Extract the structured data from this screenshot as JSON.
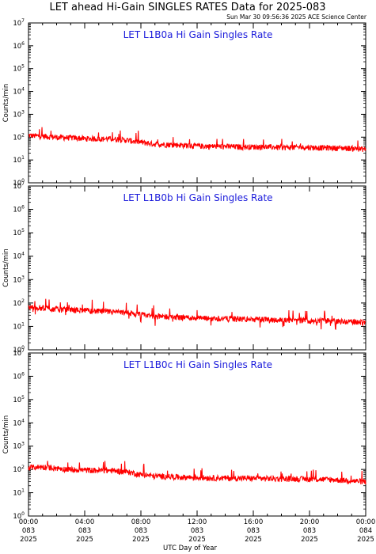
{
  "title": "LET ahead Hi-Gain SINGLES RATES Data for 2025-083",
  "timestamp": "Sun Mar 30 09:56:36 2025 ACE Science Center",
  "colors": {
    "series": "#ff0000",
    "panel_title": "#1a1adb",
    "axes": "#000000"
  },
  "chart_data": [
    {
      "type": "line",
      "title": "LET L1B0a Hi Gain Singles Rate",
      "ylabel": "Counts/min",
      "yscale": "log",
      "ylim": [
        1,
        10000000
      ],
      "xlim": [
        0,
        24
      ],
      "x": [
        0,
        1,
        2,
        3,
        4,
        5,
        6,
        7,
        8,
        9,
        10,
        11,
        12,
        13,
        14,
        15,
        16,
        17,
        18,
        19,
        20,
        21,
        22,
        23,
        24
      ],
      "series": [
        {
          "values": [
            120,
            110,
            100,
            95,
            88,
            85,
            85,
            75,
            60,
            50,
            48,
            45,
            42,
            40,
            40,
            38,
            38,
            38,
            36,
            36,
            36,
            35,
            34,
            33,
            30
          ]
        }
      ]
    },
    {
      "type": "line",
      "title": "LET L1B0b Hi Gain Singles Rate",
      "ylabel": "Counts/min",
      "yscale": "log",
      "ylim": [
        1,
        10000000
      ],
      "xlim": [
        0,
        24
      ],
      "x": [
        0,
        1,
        2,
        3,
        4,
        5,
        6,
        7,
        8,
        9,
        10,
        11,
        12,
        13,
        14,
        15,
        16,
        17,
        18,
        19,
        20,
        21,
        22,
        23,
        24
      ],
      "series": [
        {
          "values": [
            70,
            62,
            55,
            52,
            48,
            45,
            42,
            38,
            32,
            28,
            26,
            25,
            23,
            22,
            22,
            21,
            20,
            20,
            19,
            19,
            18,
            18,
            17,
            16,
            15
          ]
        }
      ]
    },
    {
      "type": "line",
      "title": "LET L1B0c Hi Gain Singles Rate",
      "ylabel": "Counts/min",
      "yscale": "log",
      "ylim": [
        1,
        10000000
      ],
      "xlim": [
        0,
        24
      ],
      "x": [
        0,
        1,
        2,
        3,
        4,
        5,
        6,
        7,
        8,
        9,
        10,
        11,
        12,
        13,
        14,
        15,
        16,
        17,
        18,
        19,
        20,
        21,
        22,
        23,
        24
      ],
      "series": [
        {
          "values": [
            125,
            130,
            115,
            100,
            95,
            92,
            90,
            80,
            60,
            52,
            50,
            47,
            45,
            44,
            43,
            42,
            42,
            41,
            40,
            40,
            39,
            38,
            36,
            33,
            30
          ]
        }
      ]
    }
  ],
  "y_ticks": [
    {
      "base": "10",
      "exp": "0"
    },
    {
      "base": "10",
      "exp": "1"
    },
    {
      "base": "10",
      "exp": "2"
    },
    {
      "base": "10",
      "exp": "3"
    },
    {
      "base": "10",
      "exp": "4"
    },
    {
      "base": "10",
      "exp": "5"
    },
    {
      "base": "10",
      "exp": "6"
    },
    {
      "base": "10",
      "exp": "7"
    }
  ],
  "x_ticks": [
    {
      "time": "00:00",
      "doy": "083",
      "year": "2025"
    },
    {
      "time": "04:00",
      "doy": "083",
      "year": "2025"
    },
    {
      "time": "08:00",
      "doy": "083",
      "year": "2025"
    },
    {
      "time": "12:00",
      "doy": "083",
      "year": "2025"
    },
    {
      "time": "16:00",
      "doy": "083",
      "year": "2025"
    },
    {
      "time": "20:00",
      "doy": "083",
      "year": "2025"
    },
    {
      "time": "00:00",
      "doy": "084",
      "year": "2025"
    }
  ],
  "xlabel": "UTC Day of Year"
}
